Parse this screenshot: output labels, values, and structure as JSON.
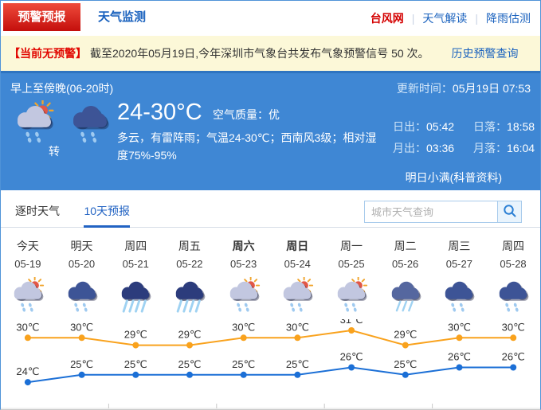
{
  "header": {
    "tab_alert": "预警预报",
    "tab_monitor": "天气监测",
    "links": [
      "台风网",
      "天气解读",
      "降雨估测"
    ]
  },
  "alert_bar": {
    "badge": "【当前无预警】",
    "text": "截至2020年05月19日,今年深圳市气象台共发布气象预警信号 50 次。",
    "history_link": "历史预警查询"
  },
  "current": {
    "period": "早上至傍晚(06-20时)",
    "update_label": "更新时间：",
    "update_value": "05月19日 07:53",
    "transition": "转",
    "temp_range": "24-30°C",
    "air_label": "空气质量：",
    "air_value": "优",
    "description": "多云，有雷阵雨；气温24-30℃；西南风3级；相对湿度75%-95%",
    "sun_moon": [
      {
        "key": "sunrise",
        "label": "日出：",
        "value": "05:42"
      },
      {
        "key": "sunset",
        "label": "日落：",
        "value": "18:58"
      },
      {
        "key": "moonrise",
        "label": "月出：",
        "value": "03:36"
      },
      {
        "key": "moonset",
        "label": "月落：",
        "value": "16:04"
      }
    ],
    "almanac": "明日小满(科普资料)",
    "icons": [
      "sun_rain",
      "cloud_rain_dots"
    ]
  },
  "tabs": {
    "hourly": "逐时天气",
    "ten_day": "10天预报"
  },
  "search": {
    "placeholder": "城市天气查询"
  },
  "chart_data": {
    "type": "line",
    "categories": [
      "今天",
      "明天",
      "周四",
      "周五",
      "周六",
      "周日",
      "周一",
      "周二",
      "周三",
      "周四"
    ],
    "weekend_bold": [
      4,
      5
    ],
    "dates": [
      "05-19",
      "05-20",
      "05-21",
      "05-22",
      "05-23",
      "05-24",
      "05-25",
      "05-26",
      "05-27",
      "05-28"
    ],
    "icons": [
      "sun_rain",
      "cloud_rain_dots",
      "cloud_rain_heavy",
      "cloud_rain_heavy",
      "sun_rain",
      "sun_rain",
      "sun_rain",
      "cloud_rain_medium",
      "cloud_rain_dots",
      "cloud_rain_dots"
    ],
    "series": [
      {
        "name": "high",
        "color": "#f9a21d",
        "values": [
          30,
          30,
          29,
          29,
          30,
          30,
          31,
          29,
          30,
          30
        ]
      },
      {
        "name": "low",
        "color": "#1b6fd6",
        "values": [
          24,
          25,
          25,
          25,
          25,
          25,
          26,
          25,
          26,
          26
        ]
      }
    ],
    "unit": "℃",
    "ylim": [
      24,
      31
    ],
    "grid": false,
    "legend_position": "none"
  },
  "colors": {
    "accent_blue": "#2263c3",
    "panel_blue": "#3f87d4",
    "alert_red": "#d21411",
    "bar_yellow": "#fcf8d8",
    "line_high": "#f9a21d",
    "line_low": "#1b6fd6"
  }
}
